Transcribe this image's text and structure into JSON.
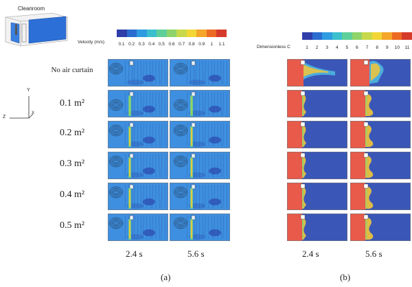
{
  "inset": {
    "label": "Cleanroom",
    "axes": {
      "y": "Y",
      "z": "Z",
      "x": "X"
    }
  },
  "velocity_bar": {
    "title": "Velocity (m/s)",
    "ticks": [
      "0.1",
      "0.2",
      "0.3",
      "0.4",
      "0.5",
      "0.6",
      "0.7",
      "0.8",
      "0.9",
      "1",
      "1.1"
    ],
    "colors": [
      "#2f3ea8",
      "#2b6cd0",
      "#2f9be0",
      "#3bbfcf",
      "#5fcf9a",
      "#8fd46a",
      "#c7d94a",
      "#f2d635",
      "#f4a52a",
      "#ec6a23",
      "#d63a2a"
    ]
  },
  "concentration_bar": {
    "title": "Dimensionless C",
    "ticks": [
      "1",
      "2",
      "3",
      "4",
      "5",
      "6",
      "7",
      "8",
      "9",
      "10",
      "11"
    ],
    "colors": [
      "#2f3ea8",
      "#2b6cd0",
      "#2f9be0",
      "#3bbfcf",
      "#5fcf9a",
      "#8fd46a",
      "#c7d94a",
      "#f2d635",
      "#f4a52a",
      "#ec6a23",
      "#d63a2a"
    ]
  },
  "rows": [
    {
      "label": "No air curtain"
    },
    {
      "label": "0.1 m²"
    },
    {
      "label": "0.2 m²"
    },
    {
      "label": "0.3 m²"
    },
    {
      "label": "0.4 m²"
    },
    {
      "label": "0.5 m²"
    }
  ],
  "times": [
    "2.4 s",
    "5.6 s"
  ],
  "sublabels": {
    "a": "(a)",
    "b": "(b)"
  }
}
